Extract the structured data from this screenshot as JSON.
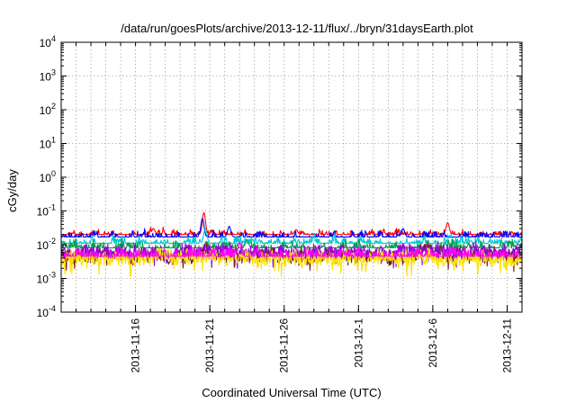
{
  "chart_data": {
    "type": "line",
    "title": "/data/run/goesPlots/archive/2013-12-11/flux/../bryn/31daysEarth.plot",
    "xlabel": "Coordinated Universal Time (UTC)",
    "ylabel": "cGy/day",
    "yscale": "log",
    "ylim": [
      0.0001,
      10000
    ],
    "xlim": [
      "2013-11-11",
      "2013-12-12"
    ],
    "grid": true,
    "y_ticks": [
      {
        "base": "10",
        "exp": "4"
      },
      {
        "base": "10",
        "exp": "3"
      },
      {
        "base": "10",
        "exp": "2"
      },
      {
        "base": "10",
        "exp": "1"
      },
      {
        "base": "10",
        "exp": "0"
      },
      {
        "base": "10",
        "exp": "-1"
      },
      {
        "base": "10",
        "exp": "-2"
      },
      {
        "base": "10",
        "exp": "-3"
      },
      {
        "base": "10",
        "exp": "-4"
      }
    ],
    "x_ticks": [
      "2013-11-16",
      "2013-11-21",
      "2013-11-26",
      "2013-12-1",
      "2013-12-6",
      "2013-12-11"
    ],
    "series": [
      {
        "color": "#ff0000",
        "level": 0.02,
        "spread": 0.1,
        "spikes": [
          [
            9.6,
            0.09
          ],
          [
            6.2,
            0.03
          ],
          [
            26.0,
            0.045
          ],
          [
            15.8,
            0.028
          ]
        ]
      },
      {
        "color": "#0000ff",
        "level": 0.017,
        "spread": 0.12,
        "spikes": [
          [
            9.5,
            0.06
          ],
          [
            11.3,
            0.035
          ],
          [
            23.0,
            0.03
          ]
        ]
      },
      {
        "color": "#00c8d2",
        "level": 0.011,
        "spread": 0.12,
        "spikes": [
          [
            9.7,
            0.03
          ],
          [
            26.2,
            0.02
          ]
        ]
      },
      {
        "color": "#00a050",
        "level": 0.008,
        "spread": 0.14,
        "spikes": [
          [
            12.5,
            0.014
          ]
        ]
      },
      {
        "color": "#7a1a1a",
        "level": 0.005,
        "spread": 0.18,
        "spikes": []
      },
      {
        "color": "#9400d3",
        "level": 0.006,
        "spread": 0.18,
        "spikes": []
      },
      {
        "color": "#ffe000",
        "level": 0.004,
        "spread": 0.2,
        "spikes": []
      },
      {
        "color": "#ff00ff",
        "level": 0.0045,
        "spread": 0.2,
        "spikes": [
          [
            12.0,
            0.012
          ]
        ]
      }
    ]
  }
}
